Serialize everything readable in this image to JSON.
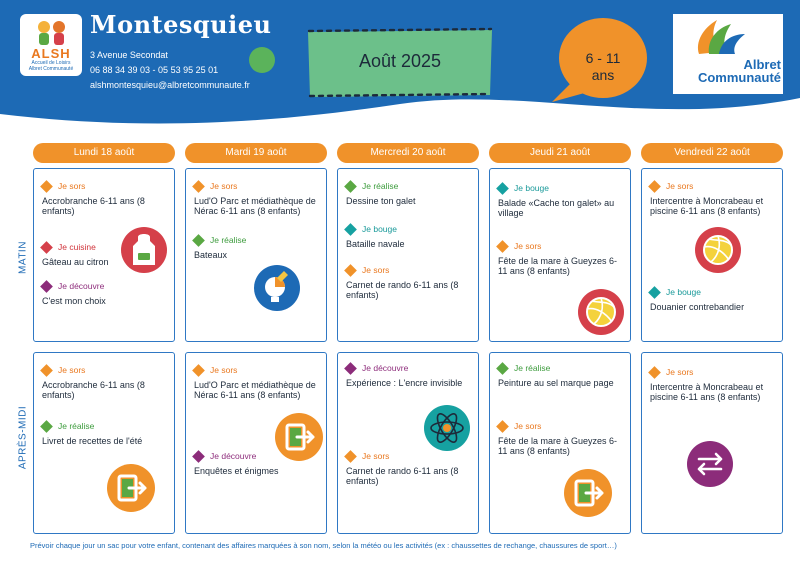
{
  "header": {
    "title": "Montesquieu",
    "logo_letters": "ALSH",
    "logo_line1": "Accueil de Loisirs",
    "logo_line2": "Albret Communauté",
    "address": "3 Avenue Secondat",
    "phones": "06 88 34 39 03  - 05 53 95 25 01",
    "email": "alshmontesquieu@albretcommunaute.fr",
    "month": "Août 2025",
    "age_line1": "6 - 11",
    "age_line2": "ans",
    "brand_line1": "Albret",
    "brand_line2": "Communauté"
  },
  "days": [
    "Lundi 18 août",
    "Mardi 19  août",
    "Mercredi 20 août",
    "Jeudi 21 août",
    "Vendredi 22 août"
  ],
  "rows": {
    "morning": "MATIN",
    "afternoon": "APRÈS-MIDI"
  },
  "labels": {
    "sors": "Je sors",
    "cuisine": "Je cuisine",
    "decouvre": "Je découvre",
    "realise": "Je réalise",
    "bouge": "Je bouge"
  },
  "morning": [
    [
      {
        "tag": "Je sors",
        "text": "Accrobranche 6-11 ans (8 enfants)"
      },
      {
        "tag": "Je cuisine",
        "text": "Gâteau au citron"
      },
      {
        "tag": "Je découvre",
        "text": "C'est mon choix"
      }
    ],
    [
      {
        "tag": "Je sors",
        "text": "Lud'O Parc et médiathèque de Nérac 6-11 ans (8 enfants)"
      },
      {
        "tag": "Je réalise",
        "text": "Bateaux"
      }
    ],
    [
      {
        "tag": "Je réalise",
        "text": "Dessine ton galet"
      },
      {
        "tag": "Je bouge",
        "text": "Bataille navale"
      },
      {
        "tag": "Je sors",
        "text": "Carnet de rando 6-11 ans (8 enfants)"
      }
    ],
    [
      {
        "tag": "Je bouge",
        "text": "Balade «Cache ton galet» au village"
      },
      {
        "tag": "Je sors",
        "text": "Fête de la mare à Gueyzes 6-11 ans (8 enfants)"
      }
    ],
    [
      {
        "tag": "Je sors",
        "text": "Intercentre à Moncrabeau et piscine 6-11 ans (8 enfants)"
      },
      {
        "tag": "Je bouge",
        "text": "Douanier contrebandier"
      }
    ]
  ],
  "afternoon": [
    [
      {
        "tag": "Je sors",
        "text": "Accrobranche 6-11 ans (8 enfants)"
      },
      {
        "tag": "Je réalise",
        "text": "Livret de recettes de l'été"
      }
    ],
    [
      {
        "tag": "Je sors",
        "text": "Lud'O Parc et médiathèque de Nérac 6-11 ans (8 enfants)"
      },
      {
        "tag": "Je découvre",
        "text": "Enquêtes et énigmes"
      }
    ],
    [
      {
        "tag": "Je découvre",
        "text": "Expérience : L'encre invisible"
      },
      {
        "tag": "Je sors",
        "text": "Carnet de rando 6-11 ans (8 enfants)"
      }
    ],
    [
      {
        "tag": "Je réalise",
        "text": "Peinture au sel marque page"
      },
      {
        "tag": "Je sors",
        "text": "Fête de la mare à Gueyzes 6-11 ans (8 enfants)"
      }
    ],
    [
      {
        "tag": "Je sors",
        "text": "Intercentre à Moncrabeau et piscine 6-11 ans (8 enfants)"
      }
    ]
  ],
  "footer": "Prévoir chaque jour un sac pour votre enfant, contenant des affaires marquées à son nom, selon la météo ou les activités (ex : chaussettes de rechange, chaussures de sport…)",
  "colors": {
    "blue": "#1d6ab5",
    "orange": "#f0922a",
    "green": "#5aa843",
    "red": "#d5404a",
    "purple": "#8c2c7a",
    "teal": "#16a1a1"
  },
  "icons": [
    "chef-apron-icon",
    "lightbulb-icon",
    "atom-icon",
    "exit-door-icon",
    "volleyball-icon",
    "swap-arrows-icon"
  ]
}
